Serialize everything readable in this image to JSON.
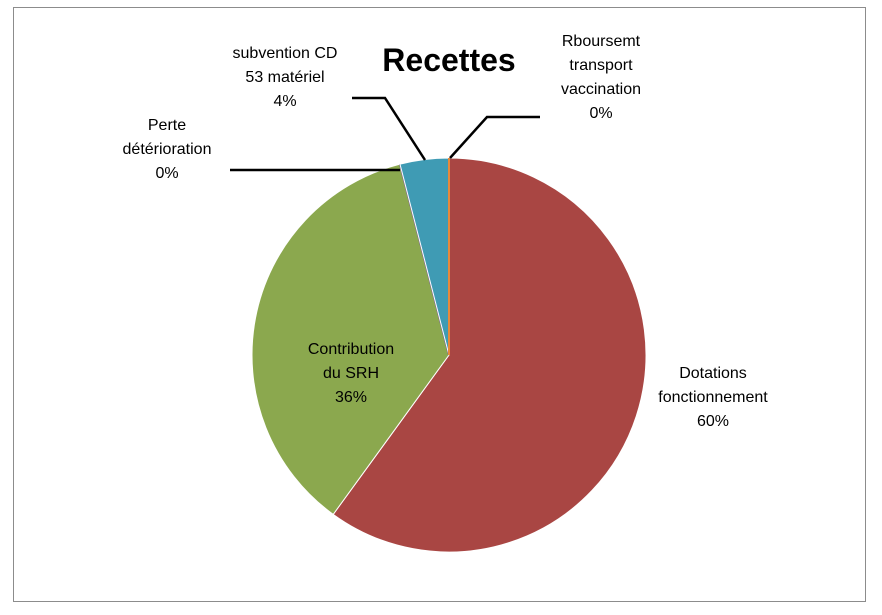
{
  "chart_data": {
    "type": "pie",
    "title": "Recettes",
    "categories": [
      "Dotations fonctionnement",
      "Contribution du SRH",
      "Perte détérioration",
      "subvention CD 53 matériel",
      "Rboursemt transport vaccination"
    ],
    "values": [
      60,
      36,
      0,
      4,
      0
    ],
    "value_labels": [
      "60%",
      "36%",
      "0%",
      "4%",
      "0%"
    ],
    "colors": [
      "#A94643",
      "#8BA84E",
      "#7B5E99",
      "#3F9BB4",
      "#E8893A"
    ]
  }
}
